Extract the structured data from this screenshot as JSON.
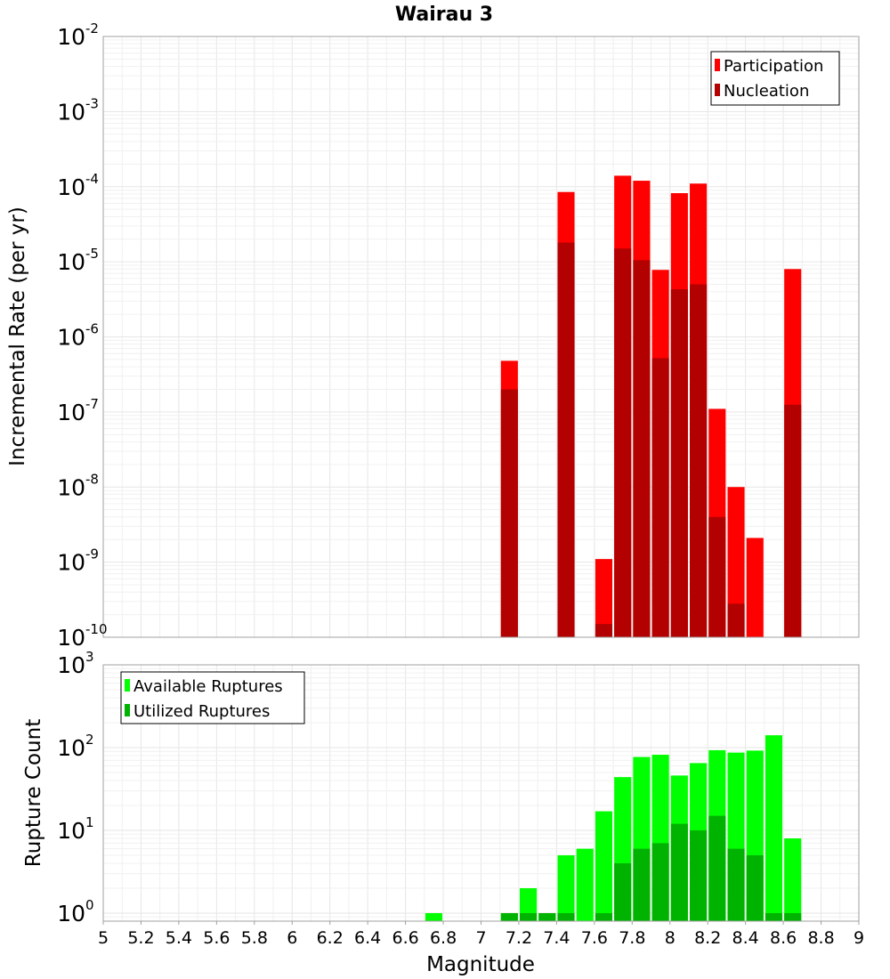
{
  "title": "Wairau 3",
  "x_axis": {
    "label": "Magnitude",
    "min": 5,
    "max": 9,
    "ticks": [
      "5",
      "5.2",
      "5.4",
      "5.6",
      "5.8",
      "6",
      "6.2",
      "6.4",
      "6.6",
      "6.8",
      "7",
      "7.2",
      "7.4",
      "7.6",
      "7.8",
      "8",
      "8.2",
      "8.4",
      "8.6",
      "8.8",
      "9"
    ]
  },
  "chart_data": [
    {
      "type": "bar",
      "title": "Wairau 3",
      "ylabel": "Incremental Rate (per yr)",
      "yscale": "log",
      "ylim": [
        1e-10,
        0.01
      ],
      "grid": true,
      "legend": "top-right",
      "y_ticks": [
        {
          "base": "10",
          "exp": "-2",
          "value": 0.01
        },
        {
          "base": "10",
          "exp": "-3",
          "value": 0.001
        },
        {
          "base": "10",
          "exp": "-4",
          "value": 0.0001
        },
        {
          "base": "10",
          "exp": "-5",
          "value": 1e-05
        },
        {
          "base": "10",
          "exp": "-6",
          "value": 1e-06
        },
        {
          "base": "10",
          "exp": "-7",
          "value": 1e-07
        },
        {
          "base": "10",
          "exp": "-8",
          "value": 1e-08
        },
        {
          "base": "10",
          "exp": "-9",
          "value": 1e-09
        },
        {
          "base": "10",
          "exp": "-10",
          "value": 1e-10
        }
      ],
      "x": [
        7.15,
        7.45,
        7.65,
        7.75,
        7.85,
        7.95,
        8.05,
        8.15,
        8.25,
        8.35,
        8.45,
        8.65
      ],
      "series": [
        {
          "name": "Participation",
          "color": "#ff0000",
          "values": [
            4.8e-07,
            8.5e-05,
            1.1e-09,
            0.00014,
            0.00012,
            7.8e-06,
            8.2e-05,
            0.00011,
            1.1e-07,
            1e-08,
            2.1e-09,
            8e-06
          ]
        },
        {
          "name": "Nucleation",
          "color": "#b30000",
          "values": [
            2e-07,
            1.8e-05,
            1.5e-10,
            1.5e-05,
            1.05e-05,
            5.2e-07,
            4.3e-06,
            5e-06,
            4e-09,
            2.8e-10,
            null,
            1.25e-07
          ]
        }
      ]
    },
    {
      "type": "bar",
      "ylabel": "Rupture Count",
      "yscale": "log",
      "ylim": [
        0.8,
        1000
      ],
      "grid": true,
      "legend": "top-left",
      "y_ticks": [
        {
          "base": "10",
          "exp": "3",
          "value": 1000
        },
        {
          "base": "10",
          "exp": "2",
          "value": 100
        },
        {
          "base": "10",
          "exp": "1",
          "value": 10
        },
        {
          "base": "10",
          "exp": "0",
          "value": 1
        }
      ],
      "x": [
        6.75,
        7.15,
        7.25,
        7.35,
        7.45,
        7.55,
        7.65,
        7.75,
        7.85,
        7.95,
        8.05,
        8.15,
        8.25,
        8.35,
        8.45,
        8.55,
        8.65
      ],
      "series": [
        {
          "name": "Available Ruptures",
          "color": "#00ff00",
          "values": [
            1,
            1,
            2,
            1,
            5,
            6,
            17,
            44,
            77,
            82,
            46,
            65,
            93,
            87,
            92,
            141,
            8
          ]
        },
        {
          "name": "Utilized Ruptures",
          "color": "#00b300",
          "values": [
            null,
            1,
            1,
            1,
            1,
            null,
            1,
            4,
            6,
            7,
            12,
            10,
            15,
            6,
            5,
            1,
            1
          ]
        }
      ]
    }
  ]
}
